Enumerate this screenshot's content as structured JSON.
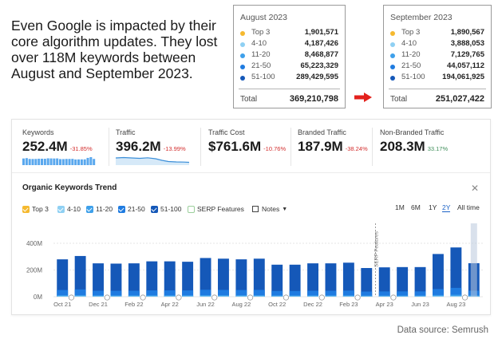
{
  "headline": "Even Google is impacted by their core algorithm updates. They lost over 118M keywords between August and September 2023.",
  "colors": {
    "top3": "#f5b92f",
    "pos4_10": "#8fd0f3",
    "pos11_20": "#3ea0ea",
    "pos21_50": "#1f7be0",
    "pos51_100": "#1558b8",
    "arrow": "#e3211c",
    "negative": "#d32f2f",
    "positive": "#3f8f5a"
  },
  "aug_box": {
    "title": "August 2023",
    "rows": [
      {
        "label": "Top 3",
        "value": "1,901,571"
      },
      {
        "label": "4-10",
        "value": "4,187,426"
      },
      {
        "label": "11-20",
        "value": "8,468,877"
      },
      {
        "label": "21-50",
        "value": "65,223,329"
      },
      {
        "label": "51-100",
        "value": "289,429,595"
      }
    ],
    "total_label": "Total",
    "total_value": "369,210,798"
  },
  "sep_box": {
    "title": "September 2023",
    "rows": [
      {
        "label": "Top 3",
        "value": "1,890,567"
      },
      {
        "label": "4-10",
        "value": "3,888,053"
      },
      {
        "label": "11-20",
        "value": "7,129,765"
      },
      {
        "label": "21-50",
        "value": "44,057,112"
      },
      {
        "label": "51-100",
        "value": "194,061,925"
      }
    ],
    "total_label": "Total",
    "total_value": "251,027,422"
  },
  "metrics": {
    "keywords": {
      "label": "Keywords",
      "value": "252.4M",
      "change": "-31.85%"
    },
    "traffic": {
      "label": "Traffic",
      "value": "396.2M",
      "change": "-13.99%"
    },
    "traffic_cost": {
      "label": "Traffic Cost",
      "value": "$761.6M",
      "change": "-10.76%"
    },
    "branded": {
      "label": "Branded Traffic",
      "value": "187.9M",
      "change": "-38.24%"
    },
    "non_branded": {
      "label": "Non-Branded Traffic",
      "value": "208.3M",
      "change": "33.17%"
    }
  },
  "trend": {
    "title": "Organic Keywords Trend",
    "close_icon": "close-icon",
    "legend": {
      "top3": "Top 3",
      "p4_10": "4-10",
      "p11_20": "11-20",
      "p21_50": "21-50",
      "p51_100": "51-100",
      "serp": "SERP Features",
      "notes": "Notes"
    },
    "ranges": [
      "1M",
      "6M",
      "1Y",
      "2Y",
      "All time"
    ],
    "active_range": "2Y"
  },
  "chart_data": {
    "type": "bar",
    "x": [
      "Oct 21",
      "Nov 21",
      "Dec 21",
      "Jan 22",
      "Feb 22",
      "Mar 22",
      "Apr 22",
      "May 22",
      "Jun 22",
      "Jul 22",
      "Aug 22",
      "Sep 22",
      "Oct 22",
      "Nov 22",
      "Dec 22",
      "Jan 23",
      "Feb 23",
      "Mar 23",
      "Apr 23",
      "May 23",
      "Jun 23",
      "Jul 23",
      "Aug 23",
      "Sep 23"
    ],
    "tick_labels": [
      "Oct 21",
      "Dec 21",
      "Feb 22",
      "Apr 22",
      "Jun 22",
      "Aug 22",
      "Oct 22",
      "Dec 22",
      "Feb 23",
      "Apr 23",
      "Jun 23",
      "Aug 23"
    ],
    "values": [
      280,
      305,
      250,
      248,
      250,
      265,
      265,
      262,
      290,
      285,
      280,
      285,
      240,
      240,
      250,
      250,
      255,
      215,
      220,
      222,
      222,
      320,
      369,
      251
    ],
    "y_ticks": [
      "0M",
      "200M",
      "400M"
    ],
    "ylim": [
      0,
      430
    ],
    "annotation": "SERP Features",
    "grid": true,
    "unit": "M"
  },
  "source": "Data source: Semrush"
}
